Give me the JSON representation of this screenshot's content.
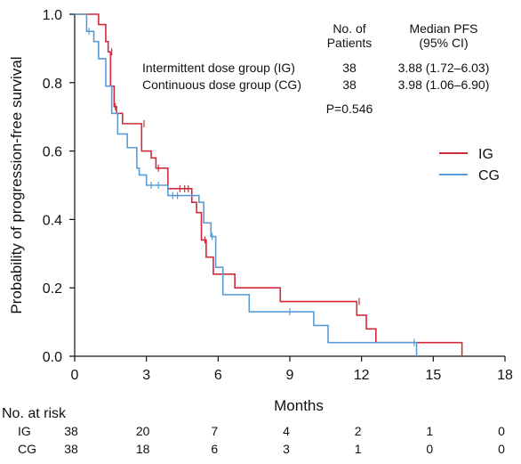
{
  "chart_data": {
    "type": "line",
    "step": true,
    "xlabel": "Months",
    "ylabel": "Probability of progression-free survival",
    "xlim": [
      0,
      18
    ],
    "ylim": [
      0,
      1
    ],
    "x_ticks": [
      "0",
      "3",
      "6",
      "9",
      "12",
      "15",
      "18"
    ],
    "y_ticks": [
      "0.0",
      "0.2",
      "0.4",
      "0.6",
      "0.8",
      "1.0"
    ],
    "grid": false,
    "legend": {
      "position": "right",
      "entries": [
        "IG",
        "CG"
      ]
    },
    "series": [
      {
        "name": "IG",
        "color": "#d12a3c",
        "x": [
          0,
          1.0,
          1.3,
          1.4,
          1.5,
          1.65,
          1.75,
          2.0,
          2.8,
          3.2,
          3.4,
          3.9,
          4.9,
          5.1,
          5.3,
          5.5,
          5.8,
          6.2,
          6.7,
          8.6,
          11.8,
          12.2,
          12.6,
          16.2
        ],
        "y": [
          1.0,
          0.97,
          0.92,
          0.89,
          0.79,
          0.73,
          0.71,
          0.68,
          0.6,
          0.58,
          0.55,
          0.49,
          0.45,
          0.42,
          0.34,
          0.29,
          0.24,
          0.24,
          0.2,
          0.16,
          0.12,
          0.08,
          0.04,
          0.0
        ],
        "censor_x": [
          1.55,
          1.7,
          2.9,
          3.5,
          4.4,
          4.6,
          4.75,
          5.45,
          11.9
        ],
        "censor_y": [
          0.89,
          0.73,
          0.68,
          0.55,
          0.49,
          0.49,
          0.49,
          0.34,
          0.16
        ]
      },
      {
        "name": "CG",
        "color": "#5b9bd5",
        "x": [
          0,
          0.5,
          0.8,
          1.0,
          1.3,
          1.55,
          1.8,
          2.2,
          2.6,
          2.7,
          3.0,
          3.9,
          5.2,
          5.4,
          5.7,
          5.9,
          6.2,
          7.3,
          10.0,
          10.6,
          14.3
        ],
        "y": [
          1.0,
          0.95,
          0.92,
          0.87,
          0.79,
          0.71,
          0.65,
          0.61,
          0.55,
          0.53,
          0.5,
          0.47,
          0.45,
          0.39,
          0.35,
          0.26,
          0.18,
          0.13,
          0.09,
          0.04,
          0.0
        ],
        "censor_x": [
          0.6,
          3.2,
          3.5,
          4.1,
          4.3,
          5.75,
          9.0,
          14.2
        ],
        "censor_y": [
          0.95,
          0.5,
          0.5,
          0.47,
          0.47,
          0.35,
          0.13,
          0.04
        ]
      }
    ],
    "annotations": {
      "header_patients": [
        "No. of",
        "Patients"
      ],
      "header_median": [
        "Median PFS",
        "(95% CI)"
      ],
      "rows": [
        {
          "group": "Intermittent dose group (IG)",
          "patients": "38",
          "median": "3.88 (1.72–6.03)"
        },
        {
          "group": "Continuous dose group (CG)",
          "patients": "38",
          "median": "3.98 (1.06–6.90)"
        }
      ],
      "p_value": "P=0.546"
    },
    "risk_table": {
      "title": "No. at risk",
      "times": [
        0,
        3,
        6,
        9,
        12,
        15,
        18
      ],
      "rows": [
        {
          "label": "IG",
          "values": [
            "38",
            "20",
            "7",
            "4",
            "2",
            "1",
            "0"
          ]
        },
        {
          "label": "CG",
          "values": [
            "38",
            "18",
            "6",
            "3",
            "1",
            "0",
            "0"
          ]
        }
      ]
    }
  }
}
